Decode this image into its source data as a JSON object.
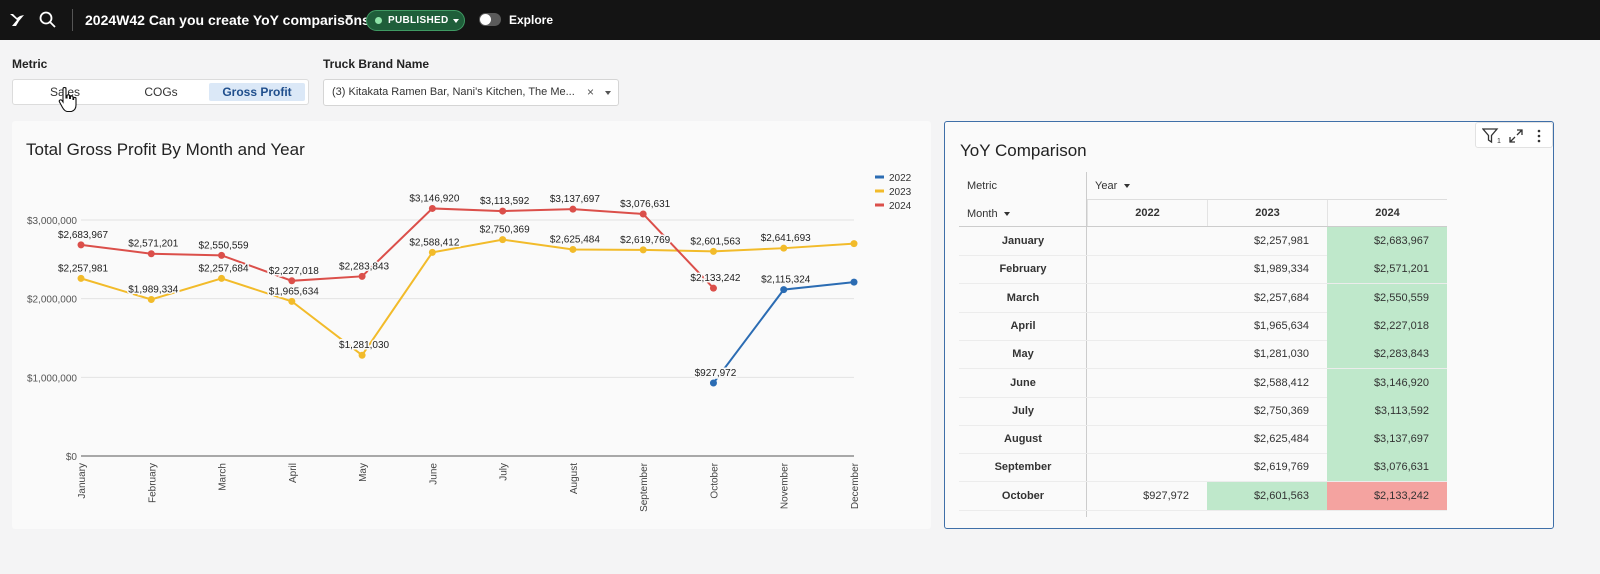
{
  "topbar": {
    "title": "2024W42 Can you create YoY comparisons?",
    "status_badge": "PUBLISHED",
    "explore_label": "Explore",
    "icons": [
      "sigma-logo-icon",
      "search-icon",
      "chevron-down-icon",
      "toggle-icon"
    ]
  },
  "controls": {
    "metric_label": "Metric",
    "metric_options": [
      "Sales",
      "COGs",
      "Gross Profit"
    ],
    "metric_selected": "Gross Profit",
    "brand_label": "Truck Brand Name",
    "brand_value": "(3) Kitakata Ramen Bar, Nani's Kitchen, The Me...",
    "brand_clear": "×"
  },
  "chart": {
    "title": "Total Gross Profit By Month and Year",
    "colors": {
      "2022": "#2b6cb3",
      "2023": "#f2bb2a",
      "2024": "#db4f4a"
    }
  },
  "chart_data": {
    "type": "line",
    "title": "Total Gross Profit By Month and Year",
    "xlabel": "",
    "ylabel": "",
    "categories": [
      "January",
      "February",
      "March",
      "April",
      "May",
      "June",
      "July",
      "August",
      "September",
      "October",
      "November",
      "December"
    ],
    "y_ticks": [
      "$0",
      "$1,000,000",
      "$2,000,000",
      "$3,000,000"
    ],
    "ylim": [
      0,
      3000000
    ],
    "grid": true,
    "legend_position": "top-right",
    "series": [
      {
        "name": "2022",
        "values": [
          null,
          null,
          null,
          null,
          null,
          null,
          null,
          null,
          null,
          927972,
          2115324,
          2210000
        ],
        "labels": [
          null,
          null,
          null,
          null,
          null,
          null,
          null,
          null,
          null,
          "$927,972",
          "$2,115,324",
          null
        ]
      },
      {
        "name": "2023",
        "values": [
          2257981,
          1989334,
          2257684,
          1965634,
          1281030,
          2588412,
          2750369,
          2625484,
          2619769,
          2601563,
          2641693,
          2700000
        ],
        "labels": [
          "$2,257,981",
          "$1,989,334",
          "$2,257,684",
          "$1,965,634",
          "$1,281,030",
          "$2,588,412",
          "$2,750,369",
          "$2,625,484",
          "$2,619,769",
          "$2,601,563",
          "$2,641,693",
          null
        ]
      },
      {
        "name": "2024",
        "values": [
          2683967,
          2571201,
          2550559,
          2227018,
          2283843,
          3146920,
          3113592,
          3137697,
          3076631,
          2133242,
          null,
          null
        ],
        "labels": [
          "$2,683,967",
          "$2,571,201",
          "$2,550,559",
          "$2,227,018",
          "$2,283,843",
          "$3,146,920",
          "$3,113,592",
          "$3,137,697",
          "$3,076,631",
          "$2,133,242",
          null,
          null
        ]
      }
    ]
  },
  "yoy": {
    "title": "YoY Comparison",
    "metric_label": "Metric",
    "year_label": "Year",
    "month_label": "Month",
    "years": [
      "2022",
      "2023",
      "2024"
    ],
    "rows": [
      {
        "month": "January",
        "v2022": "",
        "v2023": "$2,257,981",
        "v2024": "$2,683,967"
      },
      {
        "month": "February",
        "v2022": "",
        "v2023": "$1,989,334",
        "v2024": "$2,571,201"
      },
      {
        "month": "March",
        "v2022": "",
        "v2023": "$2,257,684",
        "v2024": "$2,550,559"
      },
      {
        "month": "April",
        "v2022": "",
        "v2023": "$1,965,634",
        "v2024": "$2,227,018"
      },
      {
        "month": "May",
        "v2022": "",
        "v2023": "$1,281,030",
        "v2024": "$2,283,843"
      },
      {
        "month": "June",
        "v2022": "",
        "v2023": "$2,588,412",
        "v2024": "$3,146,920"
      },
      {
        "month": "July",
        "v2022": "",
        "v2023": "$2,750,369",
        "v2024": "$3,113,592"
      },
      {
        "month": "August",
        "v2022": "",
        "v2023": "$2,625,484",
        "v2024": "$3,137,697"
      },
      {
        "month": "September",
        "v2022": "",
        "v2023": "$2,619,769",
        "v2024": "$3,076,631"
      },
      {
        "month": "October",
        "v2022": "$927,972",
        "v2023": "$2,601,563",
        "v2024": "$2,133,242"
      }
    ],
    "colors": {
      "up": "#bfe8cb",
      "down": "#f4a3a0"
    }
  }
}
